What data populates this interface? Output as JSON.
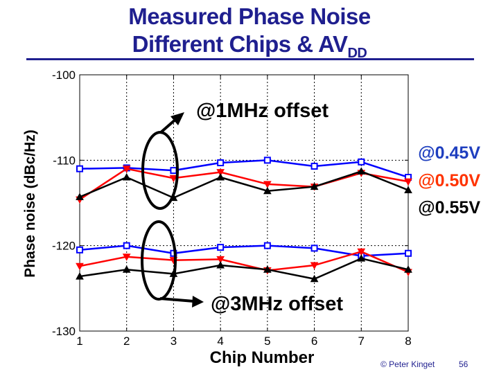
{
  "slide": {
    "title_line1": "Measured Phase Noise",
    "title_line2_main": "Different Chips & AV",
    "title_line2_sub": "DD",
    "credit": "© Peter Kinget",
    "page_number": "56"
  },
  "colors": {
    "title": "#1f1f8f",
    "series_045": "#0000ff",
    "series_050": "#ff0000",
    "series_055": "#000000",
    "label_050": "#ff3300"
  },
  "annotations": {
    "offset_1mhz": "@1MHz offset",
    "offset_3mhz": "@3MHz offset"
  },
  "chart_data": {
    "type": "line",
    "title": "",
    "xlabel": "Chip Number",
    "ylabel": "Phase noise (dBc/Hz)",
    "x": [
      1,
      2,
      3,
      4,
      5,
      6,
      7,
      8
    ],
    "xlim": [
      1,
      8
    ],
    "ylim": [
      -130,
      -100
    ],
    "yticks": [
      -100,
      -110,
      -120,
      -130
    ],
    "xticks": [
      1,
      2,
      3,
      4,
      5,
      6,
      7,
      8
    ],
    "grid": true,
    "series": [
      {
        "name": "@0.45V",
        "group": "1MHz",
        "color": "#0000ff",
        "marker": "square",
        "values": [
          -111.0,
          -110.9,
          -111.2,
          -110.3,
          -110.0,
          -110.7,
          -110.2,
          -112.0
        ]
      },
      {
        "name": "@0.50V",
        "group": "1MHz",
        "color": "#ff0000",
        "marker": "triangle-down",
        "values": [
          -114.6,
          -111.0,
          -112.1,
          -111.4,
          -112.8,
          -113.1,
          -111.5,
          -112.5
        ]
      },
      {
        "name": "@0.55V",
        "group": "1MHz",
        "color": "#000000",
        "marker": "triangle-up",
        "values": [
          -114.3,
          -112.0,
          -114.4,
          -112.0,
          -113.6,
          -113.1,
          -111.3,
          -113.5
        ]
      },
      {
        "name": "@0.45V",
        "group": "3MHz",
        "color": "#0000ff",
        "marker": "square",
        "values": [
          -120.5,
          -120.0,
          -120.9,
          -120.2,
          -120.0,
          -120.3,
          -121.2,
          -120.9
        ]
      },
      {
        "name": "@0.50V",
        "group": "3MHz",
        "color": "#ff0000",
        "marker": "triangle-down",
        "values": [
          -122.4,
          -121.3,
          -121.7,
          -121.6,
          -122.9,
          -122.3,
          -120.7,
          -123.1
        ]
      },
      {
        "name": "@0.55V",
        "group": "3MHz",
        "color": "#000000",
        "marker": "triangle-up",
        "values": [
          -123.6,
          -122.8,
          -123.3,
          -122.3,
          -122.8,
          -123.9,
          -121.5,
          -122.8
        ]
      }
    ],
    "legend": [
      {
        "label": "@0.45V",
        "color": "#1f3fbf"
      },
      {
        "label": "@0.50V",
        "color": "#ff3300"
      },
      {
        "label": "@0.55V",
        "color": "#000000"
      }
    ]
  }
}
